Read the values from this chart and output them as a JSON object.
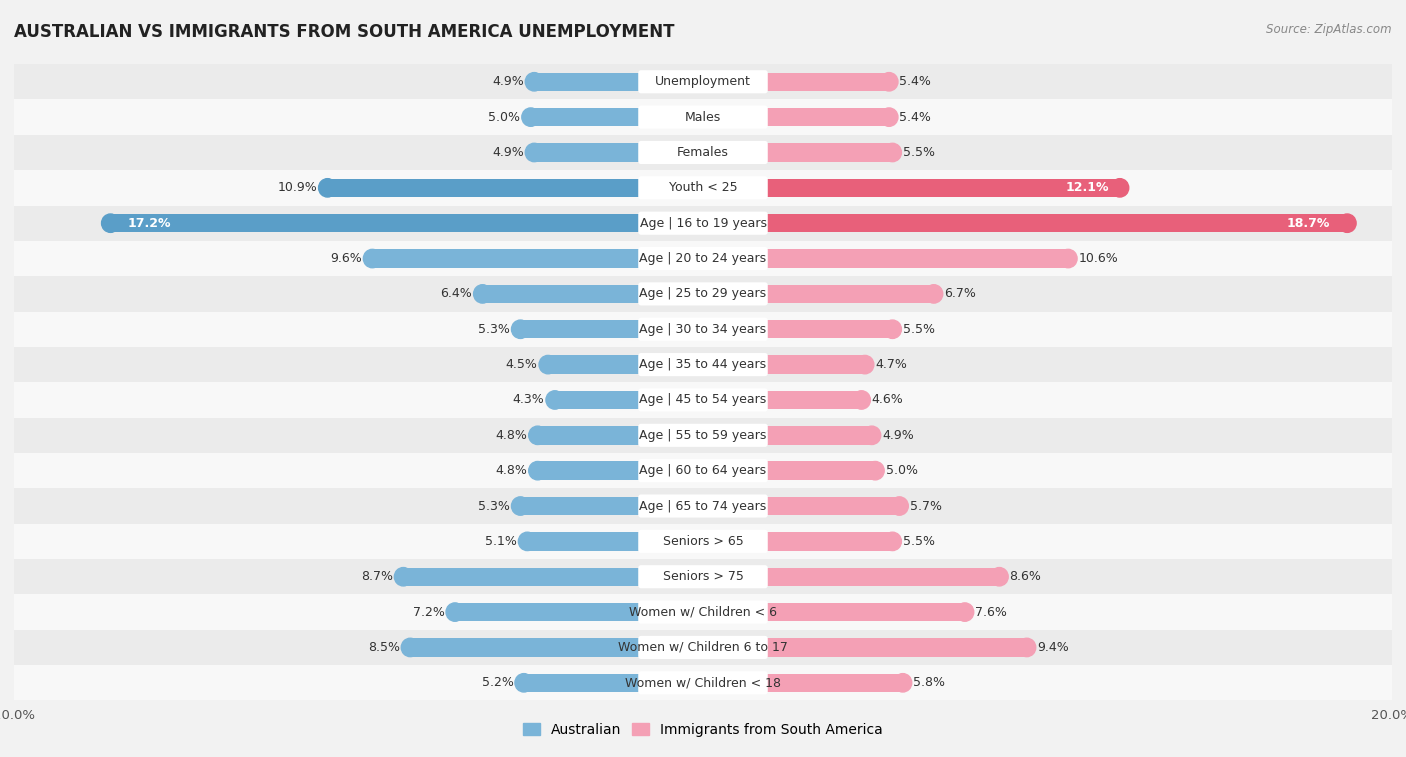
{
  "title": "AUSTRALIAN VS IMMIGRANTS FROM SOUTH AMERICA UNEMPLOYMENT",
  "source": "Source: ZipAtlas.com",
  "categories": [
    "Unemployment",
    "Males",
    "Females",
    "Youth < 25",
    "Age | 16 to 19 years",
    "Age | 20 to 24 years",
    "Age | 25 to 29 years",
    "Age | 30 to 34 years",
    "Age | 35 to 44 years",
    "Age | 45 to 54 years",
    "Age | 55 to 59 years",
    "Age | 60 to 64 years",
    "Age | 65 to 74 years",
    "Seniors > 65",
    "Seniors > 75",
    "Women w/ Children < 6",
    "Women w/ Children 6 to 17",
    "Women w/ Children < 18"
  ],
  "australian_values": [
    4.9,
    5.0,
    4.9,
    10.9,
    17.2,
    9.6,
    6.4,
    5.3,
    4.5,
    4.3,
    4.8,
    4.8,
    5.3,
    5.1,
    8.7,
    7.2,
    8.5,
    5.2
  ],
  "immigrant_values": [
    5.4,
    5.4,
    5.5,
    12.1,
    18.7,
    10.6,
    6.7,
    5.5,
    4.7,
    4.6,
    4.9,
    5.0,
    5.7,
    5.5,
    8.6,
    7.6,
    9.4,
    5.8
  ],
  "australian_color": "#7ab4d8",
  "immigrant_color": "#f4a0b5",
  "australian_highlight": "#5a9ec8",
  "immigrant_highlight": "#e8607a",
  "bg_color": "#f2f2f2",
  "row_colors": [
    "#ebebeb",
    "#f8f8f8"
  ],
  "axis_max": 20.0,
  "label_fontsize": 9.0,
  "value_fontsize": 9.0,
  "title_fontsize": 12,
  "bar_height": 0.52,
  "legend_label_australian": "Australian",
  "legend_label_immigrant": "Immigrants from South America",
  "white_label_indices": [
    3,
    4
  ],
  "pink_label_indices": [
    3
  ]
}
